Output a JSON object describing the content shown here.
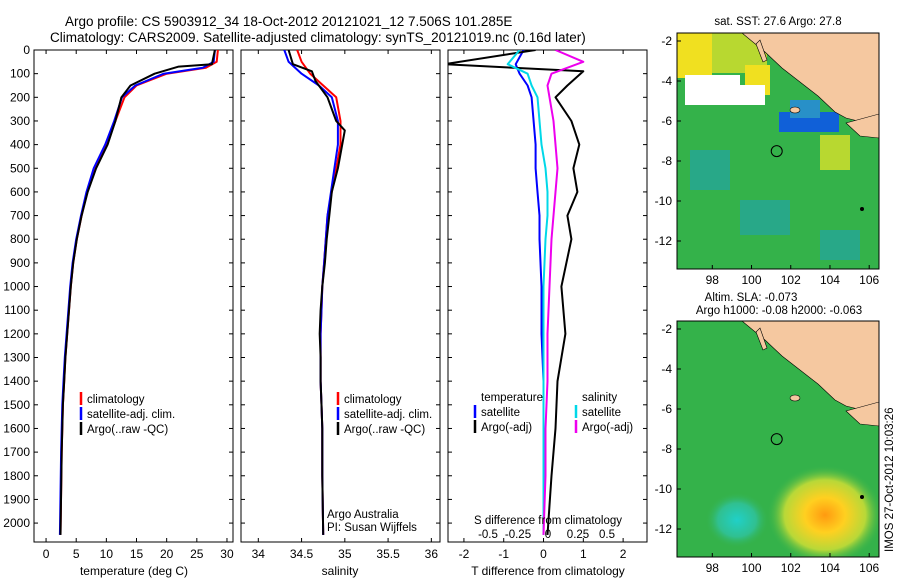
{
  "header": {
    "line1": "Argo profile: CS 5903912_34 18-Oct-2012 20121021_12 7.506S 101.285E",
    "line2": "Climatology: CARS2009. Satellite-adjusted climatology: synTS_20121019.nc (0.16d later)"
  },
  "colors": {
    "climatology": "#ff0000",
    "satellite": "#0000ff",
    "argo": "#000000",
    "satellite_salinity": "#00d8e8",
    "argo_salinity_adj": "#ee00ee",
    "land": "#f5c8a0",
    "sea": "#34b24a"
  },
  "depth_ticks": [
    0,
    100,
    200,
    300,
    400,
    500,
    600,
    700,
    800,
    900,
    1000,
    1100,
    1200,
    1300,
    1400,
    1500,
    1600,
    1700,
    1800,
    1900,
    2000
  ],
  "chart_data": [
    {
      "type": "line",
      "xlabel": "temperature (deg C)",
      "ylabel": "",
      "xlim": [
        -2,
        31
      ],
      "ylim": [
        2080,
        0
      ],
      "x_ticks": [
        0,
        5,
        10,
        15,
        20,
        25,
        30
      ],
      "legend": [
        "climatology",
        "satellite-adj. clim.",
        "Argo(..raw -QC)"
      ],
      "series": [
        {
          "name": "climatology",
          "x": [
            28.5,
            28.3,
            26.5,
            20,
            15,
            13,
            11.5,
            10,
            8,
            6.8,
            5.9,
            5.1,
            4.5,
            4.1,
            3.8,
            3.5,
            3.2,
            3.0,
            2.8,
            2.6,
            2.4
          ],
          "y": [
            0,
            50,
            75,
            100,
            150,
            200,
            300,
            400,
            500,
            600,
            700,
            800,
            900,
            1000,
            1100,
            1200,
            1300,
            1400,
            1500,
            1700,
            2050
          ]
        },
        {
          "name": "satellite-adj. clim.",
          "x": [
            28,
            27.8,
            26,
            19.5,
            14.8,
            12.6,
            11.3,
            9.8,
            7.9,
            6.7,
            5.8,
            5.0,
            4.4,
            4.0,
            3.7,
            3.4,
            3.1,
            2.9,
            2.7,
            2.5,
            2.3
          ],
          "y": [
            0,
            50,
            75,
            100,
            150,
            200,
            300,
            400,
            500,
            600,
            700,
            800,
            900,
            1000,
            1100,
            1200,
            1300,
            1400,
            1500,
            1700,
            2050
          ]
        },
        {
          "name": "Argo(..raw -QC)",
          "x": [
            28,
            27.5,
            22,
            18,
            14,
            12.5,
            11.5,
            10.2,
            8.3,
            6.9,
            5.9,
            5.1,
            4.5,
            4.1,
            3.8,
            3.5,
            3.2,
            3.0,
            2.8,
            2.6,
            2.4
          ],
          "y": [
            0,
            60,
            70,
            100,
            150,
            200,
            300,
            400,
            500,
            600,
            700,
            800,
            900,
            1000,
            1100,
            1200,
            1300,
            1400,
            1500,
            1700,
            2050
          ]
        }
      ]
    },
    {
      "type": "line",
      "xlabel": "salinity",
      "ylabel": "",
      "xlim": [
        33.8,
        36.1
      ],
      "ylim": [
        2080,
        0
      ],
      "x_ticks": [
        34,
        34.5,
        35,
        35.5,
        36
      ],
      "legend": [
        "climatology",
        "satellite-adj. clim.",
        "Argo(..raw -QC)"
      ],
      "annotation": [
        "Argo Australia",
        "PI: Susan Wijffels"
      ],
      "series": [
        {
          "name": "climatology",
          "x": [
            34.45,
            34.5,
            34.6,
            34.75,
            34.9,
            34.95,
            34.95,
            34.9,
            34.85,
            34.8,
            34.78,
            34.76,
            34.74,
            34.73,
            34.72,
            34.72,
            34.72,
            34.73,
            34.74,
            34.74,
            34.75
          ],
          "y": [
            0,
            50,
            100,
            150,
            200,
            300,
            400,
            500,
            600,
            700,
            800,
            900,
            1000,
            1100,
            1200,
            1300,
            1400,
            1500,
            1600,
            1800,
            2050
          ]
        },
        {
          "name": "satellite-adj. clim.",
          "x": [
            34.3,
            34.35,
            34.5,
            34.7,
            34.85,
            34.92,
            34.92,
            34.88,
            34.84,
            34.8,
            34.78,
            34.76,
            34.74,
            34.73,
            34.72,
            34.72,
            34.72,
            34.73,
            34.74,
            34.74,
            34.75
          ],
          "y": [
            0,
            50,
            100,
            150,
            200,
            300,
            400,
            500,
            600,
            700,
            800,
            900,
            1000,
            1100,
            1200,
            1300,
            1400,
            1500,
            1600,
            1800,
            2050
          ]
        },
        {
          "name": "Argo(..raw -QC)",
          "x": [
            34.35,
            34.4,
            34.62,
            34.66,
            34.8,
            34.9,
            35.0,
            34.92,
            34.85,
            34.82,
            34.79,
            34.77,
            34.74,
            34.72,
            34.71,
            34.72,
            34.72,
            34.73,
            34.74,
            34.74,
            34.75
          ],
          "y": [
            0,
            60,
            90,
            130,
            200,
            300,
            340,
            500,
            600,
            700,
            800,
            900,
            1000,
            1100,
            1200,
            1300,
            1400,
            1500,
            1600,
            1800,
            2050
          ]
        }
      ]
    },
    {
      "type": "line",
      "xlabel": "T difference from climatology",
      "top_label": "S difference from climatology",
      "xlim": [
        -2.4,
        2.6
      ],
      "ylim": [
        2080,
        0
      ],
      "x_ticks": [
        -2,
        -1,
        0,
        1,
        2
      ],
      "s_ticks": [
        "-0.5",
        "-0.25",
        "0",
        "0.25",
        "0.5"
      ],
      "legend": {
        "temperature": [
          "satellite",
          "Argo(-adj)"
        ],
        "salinity": [
          "satellite",
          "Argo(-adj)"
        ]
      },
      "legend_titles": [
        "temperature",
        "salinity"
      ],
      "series": [
        {
          "name": "satellite",
          "x": [
            -0.5,
            -0.7,
            -0.6,
            -0.4,
            -0.3,
            -0.25,
            -0.2,
            -0.2,
            -0.15,
            -0.1,
            -0.1,
            -0.05,
            -0.05,
            0,
            0,
            0,
            0
          ],
          "y": [
            0,
            60,
            100,
            150,
            200,
            300,
            400,
            500,
            600,
            700,
            800,
            1000,
            1200,
            1400,
            1600,
            1800,
            2050
          ]
        },
        {
          "name": "Argo(-adj)",
          "x": [
            -0.2,
            -2.5,
            1.0,
            0.6,
            0.3,
            0.7,
            0.9,
            0.75,
            0.85,
            0.6,
            0.7,
            0.45,
            0.55,
            0.35,
            0.3,
            0.2,
            0.1
          ],
          "y": [
            0,
            60,
            90,
            150,
            200,
            300,
            400,
            500,
            600,
            700,
            800,
            1000,
            1200,
            1400,
            1600,
            1800,
            2050
          ]
        },
        {
          "name": "satellite",
          "x": [
            -0.6,
            -0.9,
            -0.4,
            -0.3,
            -0.15,
            -0.1,
            -0.05,
            0.05,
            0.1,
            0.1,
            0.05,
            0,
            0,
            0,
            0,
            0,
            0
          ],
          "y": [
            0,
            60,
            100,
            150,
            200,
            300,
            400,
            500,
            600,
            700,
            800,
            1000,
            1200,
            1400,
            1600,
            1800,
            2050
          ]
        },
        {
          "name": "Argo(-adj)",
          "x": [
            0.3,
            1.0,
            0.2,
            0.1,
            0.15,
            0.25,
            0.3,
            0.35,
            0.3,
            0.25,
            0.2,
            0.15,
            0.1,
            0.1,
            0.05,
            0.05,
            0
          ],
          "y": [
            0,
            50,
            100,
            150,
            200,
            300,
            400,
            500,
            600,
            700,
            800,
            1000,
            1200,
            1400,
            1600,
            1800,
            2050
          ]
        }
      ]
    },
    {
      "type": "heatmap",
      "title": "sat. SST: 27.6 Argo: 27.8",
      "xlim": [
        96.2,
        106.5
      ],
      "ylim": [
        -13.4,
        -1.6
      ],
      "x_ticks": [
        98,
        100,
        102,
        104,
        106
      ],
      "y_ticks": [
        -2,
        -4,
        -6,
        -8,
        -10,
        -12
      ],
      "float_position": {
        "lon": 101.285,
        "lat": -7.506
      }
    },
    {
      "type": "heatmap",
      "title": [
        "Altim. SLA: -0.073",
        "Argo h1000: -0.08 h2000: -0.063"
      ],
      "xlim": [
        96.2,
        106.5
      ],
      "ylim": [
        -13.4,
        -1.6
      ],
      "x_ticks": [
        98,
        100,
        102,
        104,
        106
      ],
      "y_ticks": [
        -2,
        -4,
        -6,
        -8,
        -10,
        -12
      ],
      "float_position": {
        "lon": 101.285,
        "lat": -7.506
      }
    }
  ],
  "footer": {
    "credit": "IMOS 27-Oct-2012 10:03:26"
  }
}
